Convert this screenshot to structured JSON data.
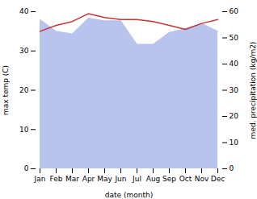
{
  "chart_data": {
    "type": "line",
    "categories": [
      "Jan",
      "Feb",
      "Mar",
      "Apr",
      "May",
      "Jun",
      "Jul",
      "Aug",
      "Sep",
      "Oct",
      "Nov",
      "Dec"
    ],
    "xlabel": "date (month)",
    "ylabel": "max temp (C)",
    "y2label": "med. precipitation (kg/m2)",
    "series": [
      {
        "type": "area",
        "axis": "y2",
        "color": "#b8c4ee",
        "values": [
          57.0,
          52.5,
          51.5,
          57.5,
          56.5,
          56.5,
          47.5,
          47.5,
          52.0,
          53.5,
          55.5,
          52.5
        ]
      },
      {
        "type": "line",
        "color": "#cc3333",
        "values": [
          35.0,
          36.5,
          37.5,
          39.5,
          38.5,
          38.0,
          38.0,
          37.5,
          36.5,
          35.5,
          37.0,
          38.0
        ]
      }
    ],
    "ylim": [
      0,
      40
    ],
    "yticks": [
      0,
      10,
      20,
      30,
      40
    ],
    "y2lim": [
      0,
      60
    ],
    "y2ticks": [
      0,
      10,
      20,
      30,
      40,
      50,
      60
    ],
    "grid": false
  }
}
